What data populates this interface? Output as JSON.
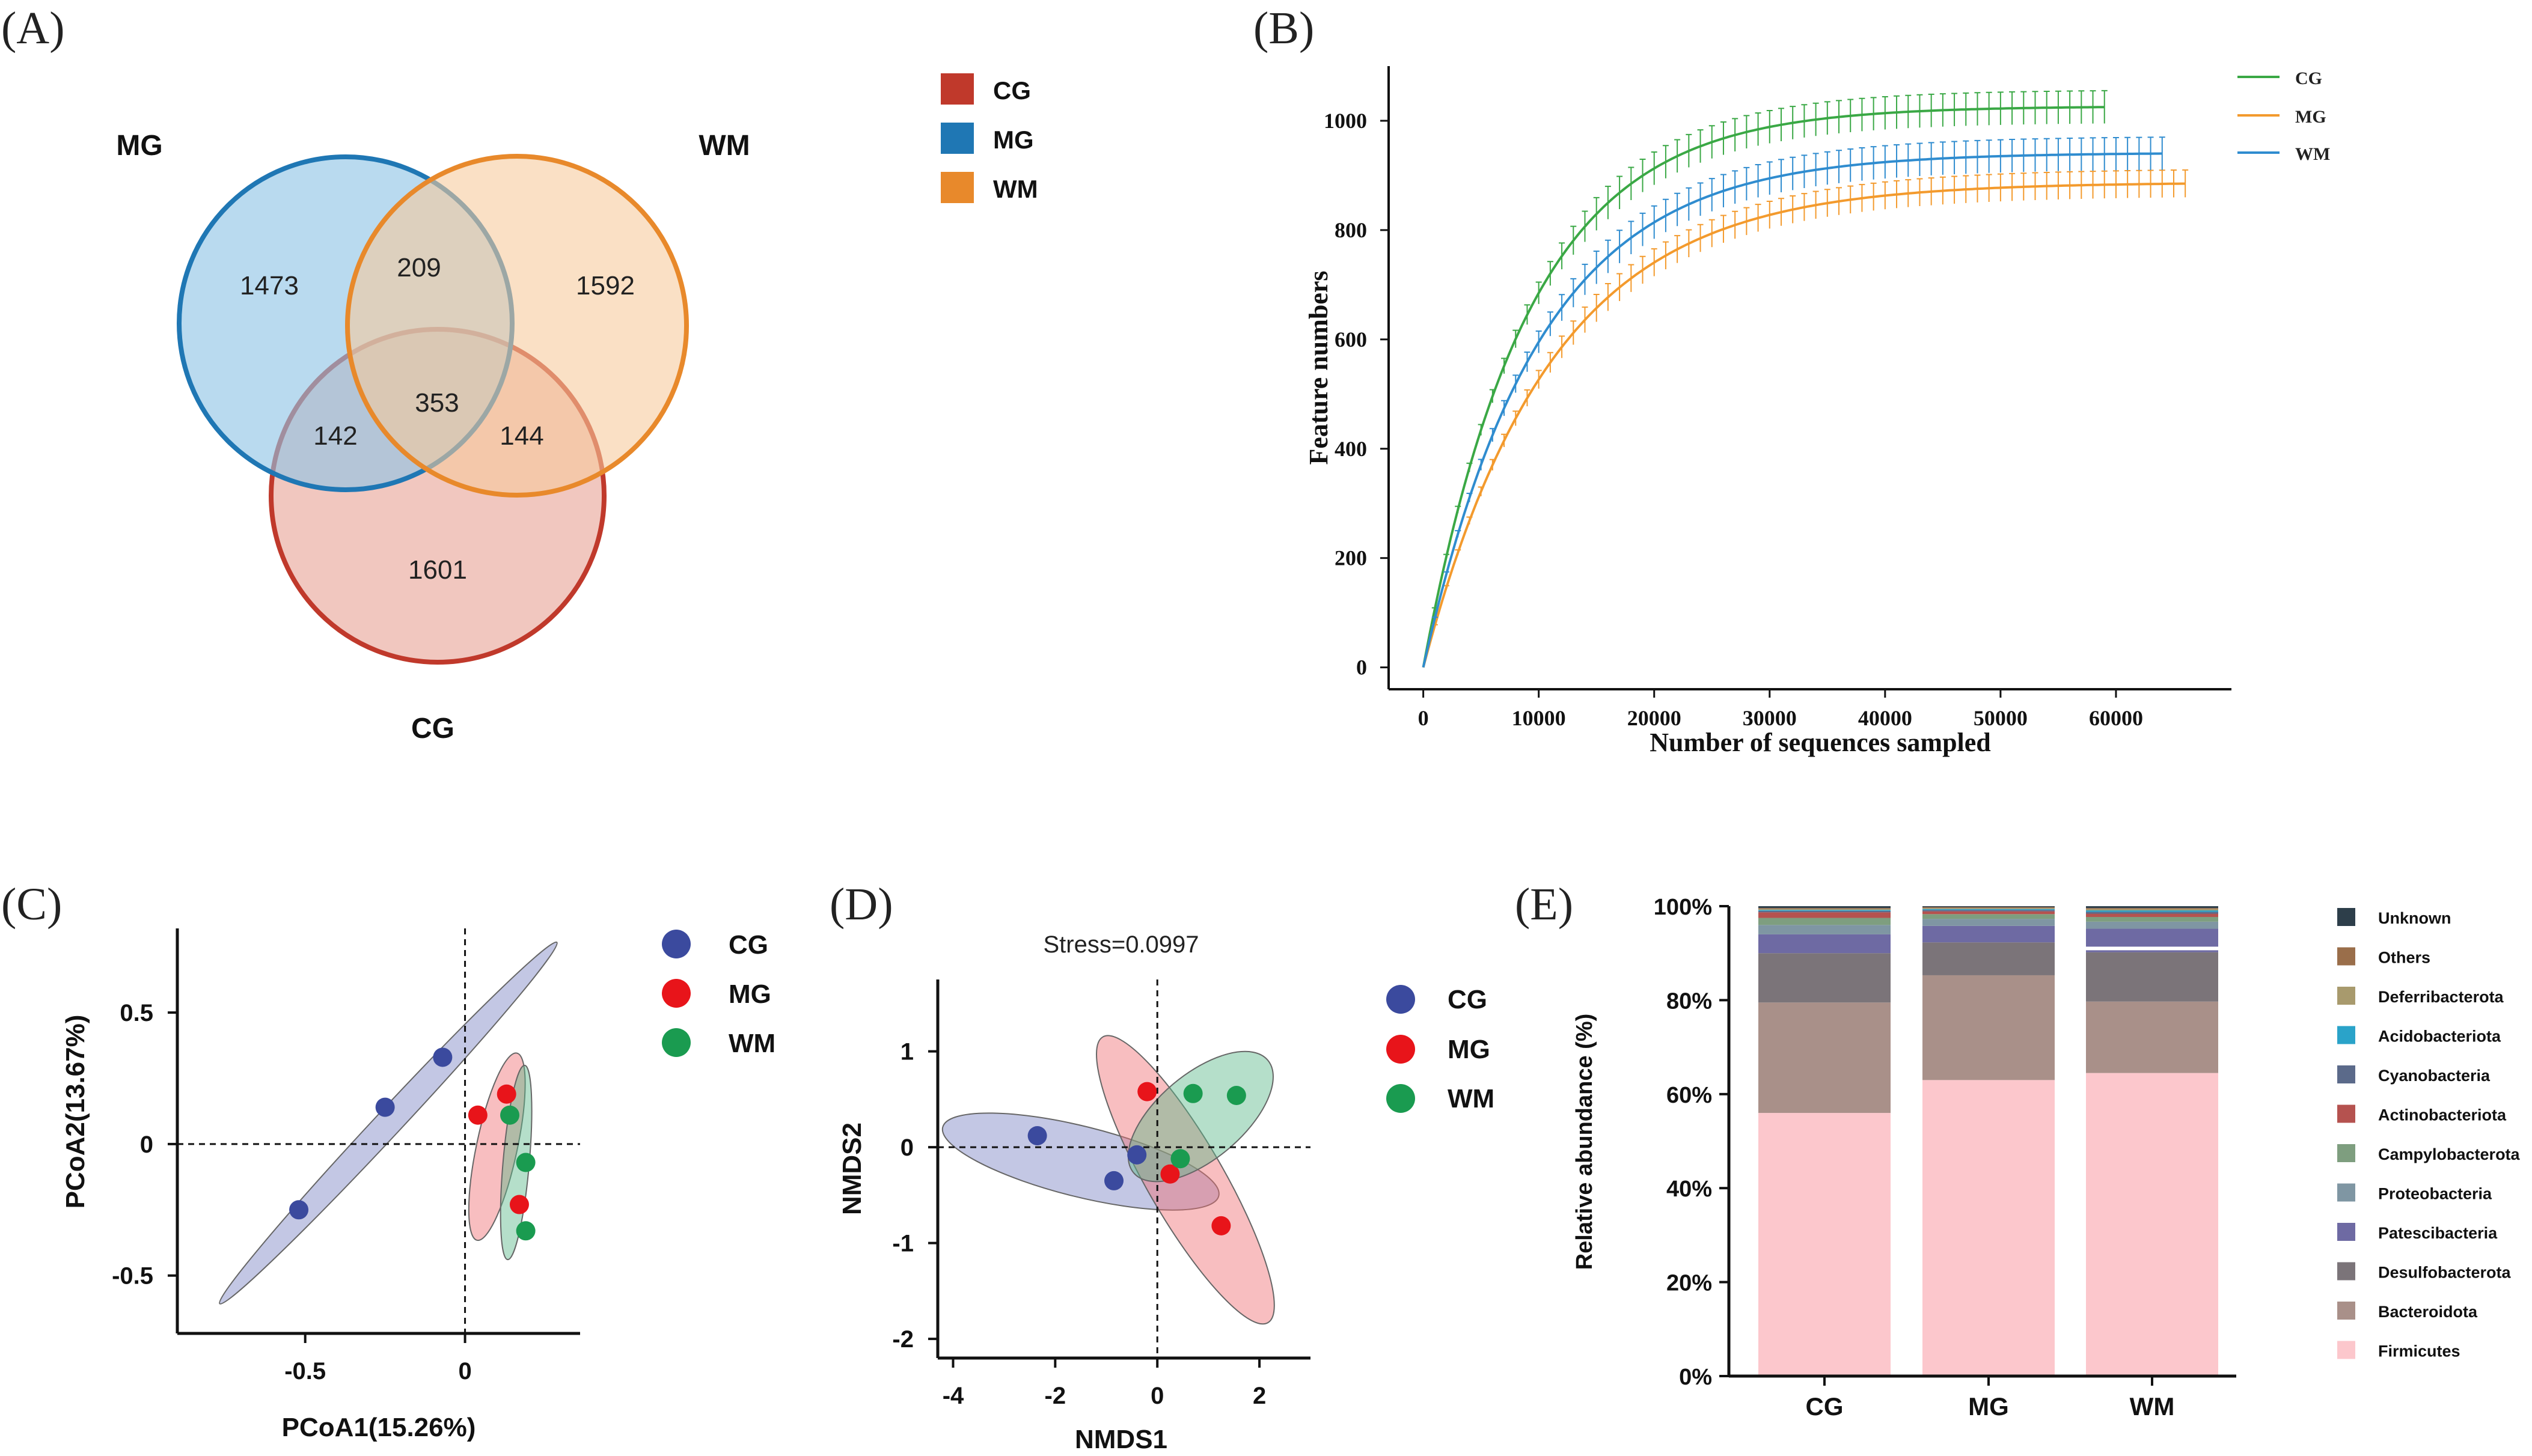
{
  "panel_labels": {
    "A": "(A)",
    "B": "(B)",
    "C": "(C)",
    "D": "(D)",
    "E": "(E)"
  },
  "colors": {
    "CG": "#c0392b",
    "MG": "#1f77b4",
    "WM": "#e8892b",
    "CG_dot": "#3b4a9e",
    "MG_dot": "#e8141a",
    "WM_dot": "#1a9b50"
  },
  "chart_data": [
    {
      "id": "A",
      "type": "venn",
      "sets": [
        "CG",
        "MG",
        "WM"
      ],
      "set_labels": {
        "CG": "CG",
        "MG": "MG",
        "WM": "WM"
      },
      "legend": [
        "CG",
        "MG",
        "WM"
      ],
      "regions": {
        "MG_only": "1473",
        "WM_only": "1592",
        "CG_only": "1601",
        "MG_WM": "209",
        "MG_CG": "142",
        "WM_CG": "144",
        "all": "353"
      }
    },
    {
      "id": "B",
      "type": "line",
      "title": "",
      "xlabel": "Number of sequences sampled",
      "ylabel": "Feature numbers",
      "xlim": [
        -3000,
        70000
      ],
      "ylim": [
        -40,
        1100
      ],
      "xticks": [
        0,
        10000,
        20000,
        30000,
        40000,
        50000,
        60000
      ],
      "yticks": [
        0,
        200,
        400,
        600,
        800,
        1000
      ],
      "legend": [
        "CG",
        "MG",
        "WM"
      ],
      "series": [
        {
          "name": "CG",
          "xmax": 59000,
          "ymax": 1025,
          "a": 0.00011,
          "color": "#3aa845",
          "err": 30
        },
        {
          "name": "MG",
          "xmax": 66000,
          "ymax": 885,
          "a": 9e-05,
          "color": "#f39a2d",
          "err": 25
        },
        {
          "name": "WM",
          "xmax": 64000,
          "ymax": 940,
          "a": 0.0001,
          "color": "#2f8ccf",
          "err": 30
        }
      ]
    },
    {
      "id": "C",
      "type": "scatter",
      "xlabel": "PCoA1(15.26%)",
      "ylabel": "PCoA2(13.67%)",
      "xlim": [
        -0.9,
        0.36
      ],
      "ylim": [
        -0.72,
        0.82
      ],
      "xticks": [
        -0.5,
        0
      ],
      "yticks": [
        -0.5,
        0,
        0.5
      ],
      "legend": [
        "CG",
        "MG",
        "WM"
      ],
      "series": [
        {
          "name": "CG",
          "points": [
            [
              -0.52,
              -0.25
            ],
            [
              -0.25,
              0.14
            ],
            [
              -0.07,
              0.33
            ]
          ]
        },
        {
          "name": "MG",
          "points": [
            [
              0.04,
              0.11
            ],
            [
              0.13,
              0.19
            ],
            [
              0.17,
              -0.23
            ]
          ]
        },
        {
          "name": "WM",
          "points": [
            [
              0.14,
              0.11
            ],
            [
              0.19,
              -0.07
            ],
            [
              0.19,
              -0.33
            ]
          ]
        }
      ],
      "ellipses": [
        {
          "name": "CG",
          "cx": -0.24,
          "cy": 0.08,
          "rx": 0.85,
          "ry": 0.045,
          "angle": 47
        },
        {
          "name": "MG",
          "cx": 0.1,
          "cy": -0.01,
          "rx": 0.36,
          "ry": 0.07,
          "angle": 78
        },
        {
          "name": "WM",
          "cx": 0.16,
          "cy": -0.07,
          "rx": 0.37,
          "ry": 0.045,
          "angle": 85
        }
      ]
    },
    {
      "id": "D",
      "type": "scatter",
      "annotation": "Stress=0.0997",
      "xlabel": "NMDS1",
      "ylabel": "NMDS2",
      "xlim": [
        -4.3,
        3
      ],
      "ylim": [
        -2.2,
        1.75
      ],
      "xticks": [
        -4,
        -2,
        0,
        2
      ],
      "yticks": [
        -2,
        -1,
        0,
        1
      ],
      "legend": [
        "CG",
        "MG",
        "WM"
      ],
      "series": [
        {
          "name": "CG",
          "points": [
            [
              -2.35,
              0.12
            ],
            [
              -0.85,
              -0.35
            ],
            [
              -0.4,
              -0.08
            ]
          ]
        },
        {
          "name": "MG",
          "points": [
            [
              -0.2,
              0.58
            ],
            [
              0.25,
              -0.28
            ],
            [
              1.25,
              -0.82
            ]
          ]
        },
        {
          "name": "WM",
          "points": [
            [
              0.45,
              -0.12
            ],
            [
              0.7,
              0.56
            ],
            [
              1.55,
              0.54
            ]
          ]
        }
      ],
      "ellipses": [
        {
          "name": "CG",
          "cx": -1.5,
          "cy": -0.15,
          "rx": 2.6,
          "ry": 0.48,
          "angle": -14
        },
        {
          "name": "MG",
          "cx": 0.55,
          "cy": -0.34,
          "rx": 1.9,
          "ry": 0.52,
          "angle": -60
        },
        {
          "name": "WM",
          "cx": 0.85,
          "cy": 0.32,
          "rx": 1.2,
          "ry": 0.58,
          "angle": 40
        }
      ]
    },
    {
      "id": "E",
      "type": "bar",
      "stacked": true,
      "ylabel": "Relative abundance (%)",
      "ylim": [
        0,
        100
      ],
      "ytick_labels": [
        "0%",
        "20%",
        "40%",
        "60%",
        "80%",
        "100%"
      ],
      "categories": [
        "CG",
        "MG",
        "WM"
      ],
      "legend_order": [
        "Unknown",
        "Others",
        "Deferribacterota",
        "Acidobacteriota",
        "Cyanobacteria",
        "Actinobacteriota",
        "Campylobacterota",
        "Proteobacteria",
        "Patescibacteria",
        "Desulfobacterota",
        "Bacteroidota",
        "Firmicutes"
      ],
      "series": [
        {
          "name": "Firmicutes",
          "color": "#fcc7cc",
          "values": [
            56,
            63,
            64.5
          ]
        },
        {
          "name": "Bacteroidota",
          "color": "#a99089",
          "values": [
            23.5,
            22.3,
            15.2
          ]
        },
        {
          "name": "Desulfobacterota",
          "color": "#7b7479",
          "values": [
            10.5,
            7,
            10.5
          ]
        },
        {
          "name": "Patescibacteria",
          "color": "#6e6aa3",
          "values": [
            4,
            3.5,
            5
          ]
        },
        {
          "name": "Proteobacteria",
          "color": "#7f96a3",
          "values": [
            2,
            1.5,
            1.5
          ]
        },
        {
          "name": "Campylobacterota",
          "color": "#7e9e7f",
          "values": [
            1.5,
            1,
            1
          ]
        },
        {
          "name": "Actinobacteriota",
          "color": "#b5524f",
          "values": [
            1.2,
            0.6,
            0.7
          ]
        },
        {
          "name": "Cyanobacteria",
          "color": "#5b6a8a",
          "values": [
            0.3,
            0.3,
            0.4
          ]
        },
        {
          "name": "Acidobacteriota",
          "color": "#2aa3c9",
          "values": [
            0.2,
            0.2,
            0.3
          ]
        },
        {
          "name": "Deferribacterota",
          "color": "#a89a6d",
          "values": [
            0.2,
            0.2,
            0.3
          ]
        },
        {
          "name": "Others",
          "color": "#9a6e4a",
          "values": [
            0.2,
            0.2,
            0.2
          ]
        },
        {
          "name": "Unknown",
          "color": "#2d3e4a",
          "values": [
            0.4,
            0.2,
            0.4
          ]
        }
      ]
    }
  ]
}
